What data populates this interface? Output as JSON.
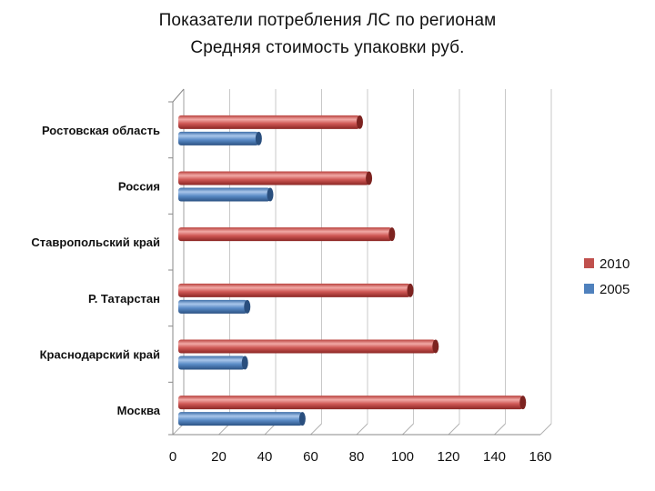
{
  "chart_data": {
    "type": "bar",
    "orientation": "horizontal",
    "title": "Показатели потребления ЛС по регионам",
    "subtitle": "Средняя стоимость упаковки руб.",
    "categories": [
      "Ростовская область",
      "Россия",
      "Ставропольский край",
      "Р. Татарстан",
      "Краснодарский край",
      "Москва"
    ],
    "series": [
      {
        "name": "2010",
        "color": "#c0504d",
        "values": [
          79,
          83,
          93,
          101,
          112,
          150
        ]
      },
      {
        "name": "2005",
        "color": "#4f81bd",
        "values": [
          35,
          40,
          null,
          30,
          29,
          54
        ]
      }
    ],
    "x_ticks": [
      "0",
      "20",
      "40",
      "60",
      "80",
      "100",
      "120",
      "140",
      "160"
    ],
    "xlim": [
      0,
      160
    ],
    "grid": "vertical",
    "legend_position": "right",
    "style": "3d-cylinder"
  }
}
